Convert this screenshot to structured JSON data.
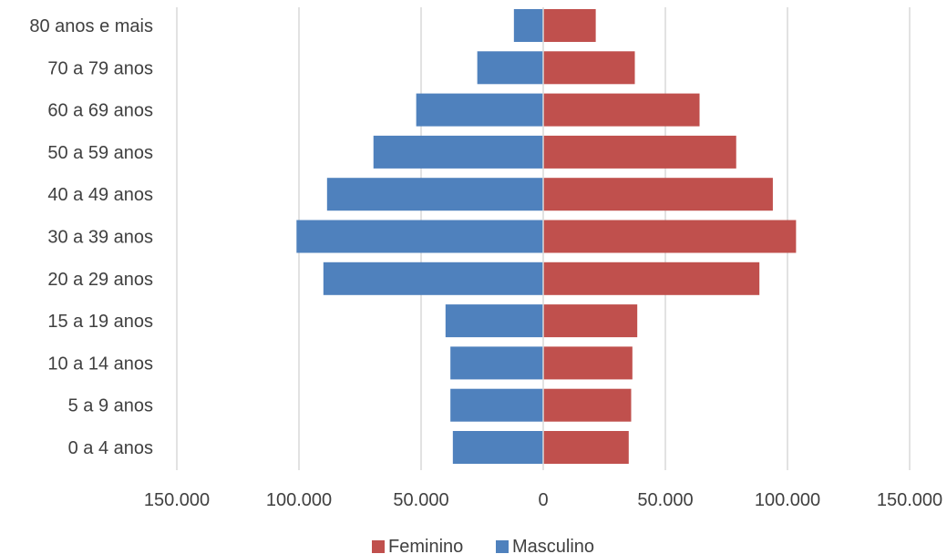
{
  "chart_data": {
    "type": "bar",
    "orientation": "horizontal",
    "layout": "population-pyramid",
    "categories": [
      "0 a 4 anos",
      "5 a 9 anos",
      "10 a 14 anos",
      "15 a 19 anos",
      "20 a 29 anos",
      "30 a 39 anos",
      "40 a 49 anos",
      "50 a 59 anos",
      "60 a 69 anos",
      "70 a 79 anos",
      "80 anos e mais"
    ],
    "series": [
      {
        "name": "Feminino",
        "color": "#C0504D",
        "side": "right",
        "values": [
          35000,
          36000,
          36500,
          38500,
          88500,
          103500,
          94000,
          79000,
          64000,
          37500,
          21500
        ]
      },
      {
        "name": "Masculino",
        "color": "#4F81BD",
        "side": "left",
        "values": [
          37000,
          38000,
          38000,
          40000,
          90000,
          101000,
          88500,
          69500,
          52000,
          27000,
          12000
        ]
      }
    ],
    "xlim": [
      -150000,
      150000
    ],
    "xticks": [
      -150000,
      -100000,
      -50000,
      0,
      50000,
      100000,
      150000
    ],
    "xtick_labels": [
      "150.000",
      "100.000",
      "50.000",
      "0",
      "50.000",
      "100.000",
      "150.000"
    ],
    "grid": true,
    "legend": {
      "position": "bottom",
      "entries": [
        "Feminino",
        "Masculino"
      ]
    },
    "title": "",
    "xlabel": "",
    "ylabel": ""
  }
}
